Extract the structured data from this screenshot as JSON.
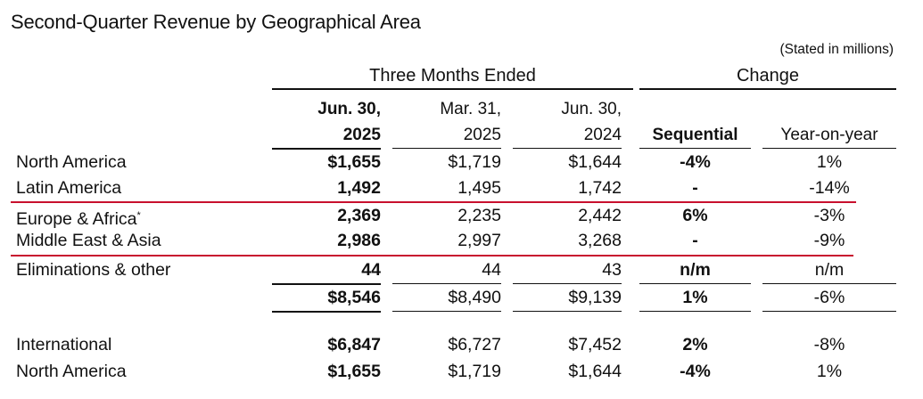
{
  "title": "Second-Quarter Revenue by Geographical Area",
  "note": "(Stated in millions)",
  "group_headers": {
    "three_months": "Three Months Ended",
    "change": "Change"
  },
  "columns": {
    "c1_line1": "Jun. 30,",
    "c1_line2": "2025",
    "c2_line1": "Mar. 31,",
    "c2_line2": "2025",
    "c3_line1": "Jun. 30,",
    "c3_line2": "2024",
    "sequential": "Sequential",
    "yoy": "Year-on-year"
  },
  "rows": [
    {
      "label": "North America",
      "c1": "$1,655",
      "c2": "$1,719",
      "c3": "$1,644",
      "seq": "-4%",
      "yoy": "1%"
    },
    {
      "label": "Latin America",
      "c1": "1,492",
      "c2": "1,495",
      "c3": "1,742",
      "seq": "-",
      "yoy": "-14%"
    },
    {
      "label": "Europe & Africa",
      "label_sup": "*",
      "c1": "2,369",
      "c2": "2,235",
      "c3": "2,442",
      "seq": "6%",
      "yoy": "-3%"
    },
    {
      "label": "Middle East & Asia",
      "c1": "2,986",
      "c2": "2,997",
      "c3": "3,268",
      "seq": "-",
      "yoy": "-9%"
    },
    {
      "label": "Eliminations & other",
      "c1": "44",
      "c2": "44",
      "c3": "43",
      "seq": "n/m",
      "yoy": "n/m"
    },
    {
      "label": "",
      "c1": "$8,546",
      "c2": "$8,490",
      "c3": "$9,139",
      "seq": "1%",
      "yoy": "-6%"
    },
    {
      "label": "International",
      "c1": "$6,847",
      "c2": "$6,727",
      "c3": "$7,452",
      "seq": "2%",
      "yoy": "-8%"
    },
    {
      "label": "North America",
      "c1": "$1,655",
      "c2": "$1,719",
      "c3": "$1,644",
      "seq": "-4%",
      "yoy": "1%"
    }
  ],
  "colors": {
    "accent_line": "#c8102e",
    "text": "#111111"
  }
}
